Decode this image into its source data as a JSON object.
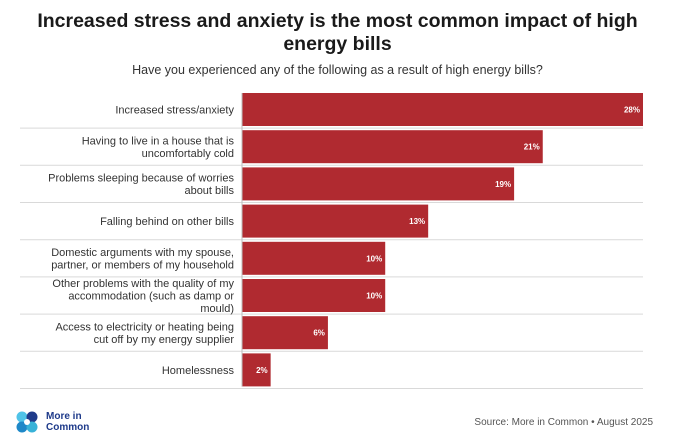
{
  "title": "Increased stress and anxiety is the most common impact of high energy bills",
  "subtitle": "Have you experienced any of the following as a result of high energy bills?",
  "colors": {
    "bar": "#b02a30",
    "value_text": "#ffffff",
    "separator": "#d9d9d9"
  },
  "chart_data": {
    "type": "bar",
    "orientation": "horizontal",
    "title": "Increased stress and anxiety is the most common impact of high energy bills",
    "subtitle": "Have you experienced any of the following as a result of high energy bills?",
    "categories": [
      [
        "Increased stress/anxiety"
      ],
      [
        "Having to live in a house that is",
        "uncomfortably cold"
      ],
      [
        "Problems sleeping because of worries",
        "about bills"
      ],
      [
        "Falling behind on other bills"
      ],
      [
        "Domestic arguments with my spouse,",
        "partner, or members of my household"
      ],
      [
        "Other problems with the quality of my",
        "accommodation (such as damp or",
        "mould)"
      ],
      [
        "Access to electricity or heating being",
        "cut off by my energy supplier"
      ],
      [
        "Homelessness"
      ]
    ],
    "values": [
      28,
      21,
      19,
      13,
      10,
      10,
      6,
      2
    ],
    "value_labels": [
      "28%",
      "21%",
      "19%",
      "13%",
      "10%",
      "10%",
      "6%",
      "2%"
    ],
    "unit": "%",
    "xlim": [
      0,
      28
    ],
    "xlabel": "",
    "ylabel": "",
    "grid": false
  },
  "logo": {
    "line1": "More in",
    "line2": "Common",
    "icon": "more-in-common-logo-icon"
  },
  "source": "Source: More in Common • August 2025"
}
